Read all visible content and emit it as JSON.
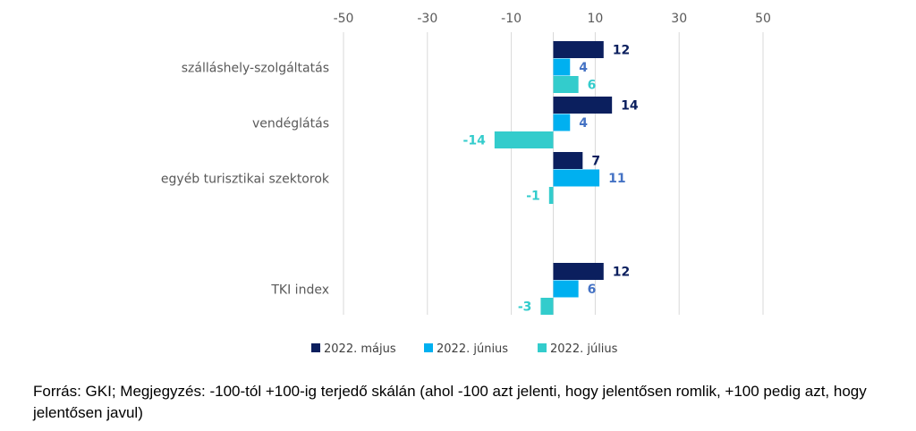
{
  "chart_data": {
    "type": "bar",
    "orientation": "horizontal",
    "categories": [
      "szálláshely-szolgáltatás",
      "vendéglátás",
      "egyéb turisztikai szektorok",
      "TKI index"
    ],
    "series": [
      {
        "name": "2022. május",
        "color": "#0b1f5e",
        "label_color": "#0b1f5e",
        "values": [
          12,
          14,
          7,
          12
        ]
      },
      {
        "name": "2022. június",
        "color": "#00b0f0",
        "label_color": "#4472c4",
        "values": [
          4,
          4,
          11,
          6
        ]
      },
      {
        "name": "2022. július",
        "color": "#33cccc",
        "label_color": "#33cccc",
        "values": [
          6,
          -14,
          -1,
          -3
        ]
      }
    ],
    "xlim": [
      -50,
      50
    ],
    "xticks": [
      -50,
      -30,
      -10,
      10,
      30,
      50
    ],
    "axis_position": "top",
    "grid": true,
    "legend_position": "bottom",
    "title": "",
    "xlabel": "",
    "ylabel": ""
  },
  "source_note": "Forrás: GKI; Megjegyzés: -100-tól +100-ig terjedő skálán (ahol -100 azt jelenti, hogy jelentősen romlik, +100 pedig azt, hogy jelentősen javul)"
}
